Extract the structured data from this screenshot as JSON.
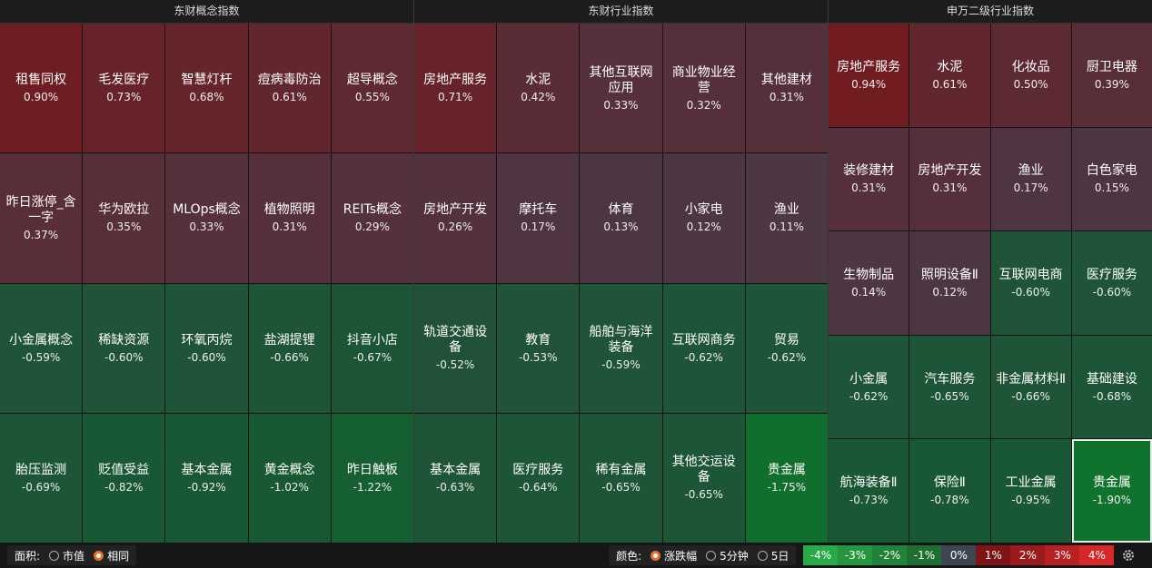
{
  "panels": [
    {
      "title": "东财概念指数",
      "cells": [
        {
          "name": "租售同权",
          "change": "0.90%"
        },
        {
          "name": "毛发医疗",
          "change": "0.73%"
        },
        {
          "name": "智慧灯杆",
          "change": "0.68%"
        },
        {
          "name": "痘病毒防治",
          "change": "0.61%"
        },
        {
          "name": "超导概念",
          "change": "0.55%"
        },
        {
          "name": "昨日涨停_含一字",
          "change": "0.37%"
        },
        {
          "name": "华为欧拉",
          "change": "0.35%"
        },
        {
          "name": "MLOps概念",
          "change": "0.33%"
        },
        {
          "name": "植物照明",
          "change": "0.31%"
        },
        {
          "name": "REITs概念",
          "change": "0.29%"
        },
        {
          "name": "小金属概念",
          "change": "-0.59%"
        },
        {
          "name": "稀缺资源",
          "change": "-0.60%"
        },
        {
          "name": "环氧丙烷",
          "change": "-0.60%"
        },
        {
          "name": "盐湖提锂",
          "change": "-0.66%"
        },
        {
          "name": "抖音小店",
          "change": "-0.67%"
        },
        {
          "name": "胎压监测",
          "change": "-0.69%"
        },
        {
          "name": "贬值受益",
          "change": "-0.82%"
        },
        {
          "name": "基本金属",
          "change": "-0.92%"
        },
        {
          "name": "黄金概念",
          "change": "-1.02%"
        },
        {
          "name": "昨日触板",
          "change": "-1.22%"
        }
      ]
    },
    {
      "title": "东财行业指数",
      "cells": [
        {
          "name": "房地产服务",
          "change": "0.71%"
        },
        {
          "name": "水泥",
          "change": "0.42%"
        },
        {
          "name": "其他互联网应用",
          "change": "0.33%"
        },
        {
          "name": "商业物业经营",
          "change": "0.32%"
        },
        {
          "name": "其他建材",
          "change": "0.31%"
        },
        {
          "name": "房地产开发",
          "change": "0.26%"
        },
        {
          "name": "摩托车",
          "change": "0.17%"
        },
        {
          "name": "体育",
          "change": "0.13%"
        },
        {
          "name": "小家电",
          "change": "0.12%"
        },
        {
          "name": "渔业",
          "change": "0.11%"
        },
        {
          "name": "轨道交通设备",
          "change": "-0.52%"
        },
        {
          "name": "教育",
          "change": "-0.53%"
        },
        {
          "name": "船舶与海洋装备",
          "change": "-0.59%"
        },
        {
          "name": "互联网商务",
          "change": "-0.62%"
        },
        {
          "name": "贸易",
          "change": "-0.62%"
        },
        {
          "name": "基本金属",
          "change": "-0.63%"
        },
        {
          "name": "医疗服务",
          "change": "-0.64%"
        },
        {
          "name": "稀有金属",
          "change": "-0.65%"
        },
        {
          "name": "其他交运设备",
          "change": "-0.65%"
        },
        {
          "name": "贵金属",
          "change": "-1.75%"
        }
      ]
    },
    {
      "title": "申万二级行业指数",
      "cells": [
        {
          "name": "房地产服务",
          "change": "0.94%"
        },
        {
          "name": "水泥",
          "change": "0.61%"
        },
        {
          "name": "化妆品",
          "change": "0.50%"
        },
        {
          "name": "厨卫电器",
          "change": "0.39%"
        },
        {
          "name": "装修建材",
          "change": "0.31%"
        },
        {
          "name": "房地产开发",
          "change": "0.31%"
        },
        {
          "name": "渔业",
          "change": "0.17%"
        },
        {
          "name": "白色家电",
          "change": "0.15%"
        },
        {
          "name": "生物制品",
          "change": "0.14%"
        },
        {
          "name": "照明设备Ⅱ",
          "change": "0.12%"
        },
        {
          "name": "互联网电商",
          "change": "-0.60%"
        },
        {
          "name": "医疗服务",
          "change": "-0.60%"
        },
        {
          "name": "小金属",
          "change": "-0.62%"
        },
        {
          "name": "汽车服务",
          "change": "-0.65%"
        },
        {
          "name": "非金属材料Ⅱ",
          "change": "-0.66%"
        },
        {
          "name": "基础建设",
          "change": "-0.68%"
        },
        {
          "name": "航海装备Ⅱ",
          "change": "-0.73%"
        },
        {
          "name": "保险Ⅱ",
          "change": "-0.78%"
        },
        {
          "name": "工业金属",
          "change": "-0.95%"
        },
        {
          "name": "贵金属",
          "change": "-1.90%"
        }
      ]
    }
  ],
  "footer": {
    "area_label": "面积:",
    "area_options": [
      "市值",
      "相同"
    ],
    "color_label": "颜色:",
    "color_options": [
      "涨跌幅",
      "5分钟",
      "5日"
    ],
    "legend": [
      "-4%",
      "-3%",
      "-2%",
      "-1%",
      "0%",
      "1%",
      "2%",
      "3%",
      "4%"
    ]
  }
}
